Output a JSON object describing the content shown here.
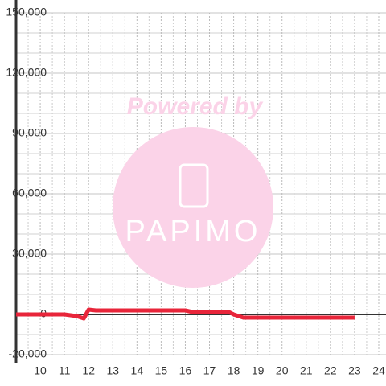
{
  "chart_data": {
    "type": "line",
    "x": [
      9,
      11,
      11.5,
      11.8,
      12,
      12.3,
      16,
      16.3,
      17.8,
      18,
      18.4,
      23
    ],
    "series": [
      {
        "color": "#e8253a",
        "values": [
          0,
          0,
          -800,
          -2000,
          2400,
          2000,
          2000,
          1200,
          1200,
          0,
          -1600,
          -1600
        ]
      }
    ],
    "xlim": [
      9,
      24.3
    ],
    "xticks": [
      10,
      11,
      12,
      13,
      14,
      15,
      16,
      17,
      18,
      19,
      20,
      21,
      22,
      23,
      24
    ],
    "xminor": [
      9.5,
      10.5,
      11.5,
      12.5,
      13.5,
      14.5,
      15.5,
      16.5,
      17.5,
      18.5,
      19.5,
      20.5,
      21.5,
      22.5,
      23.5
    ],
    "ylim": [
      -20000,
      150000
    ],
    "yticks": [
      {
        "value": -20000,
        "label": "-20,000"
      },
      0,
      {
        "value": 30000,
        "label": "30,000"
      },
      {
        "value": 60000,
        "label": "60,000"
      },
      {
        "value": 90000,
        "label": "90,000"
      },
      {
        "value": 120000,
        "label": "120,000"
      },
      {
        "value": 150000,
        "label": "150,000"
      }
    ],
    "yminor": [
      -10000,
      10000,
      20000,
      40000,
      50000,
      70000,
      80000,
      100000,
      110000,
      130000,
      140000
    ],
    "grid": true,
    "watermark": {
      "caption": "Powered by",
      "logo": "PAPIMO"
    }
  }
}
